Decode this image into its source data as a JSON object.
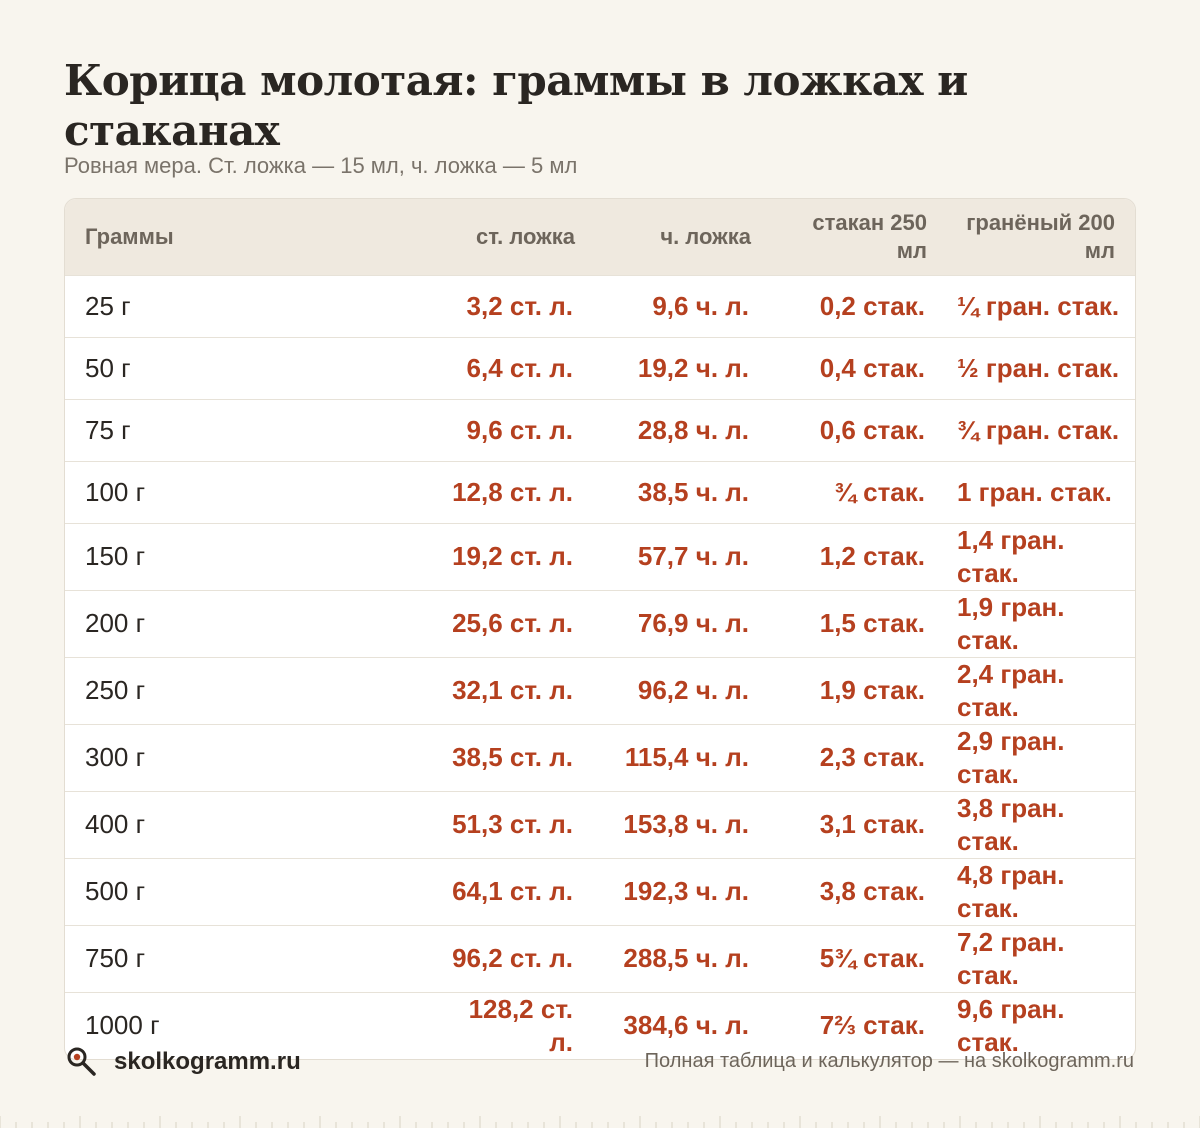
{
  "header": {
    "title": "Корица молотая: граммы в ложках и стаканах",
    "subtitle": "Ровная мера. Ст. ложка — 15 мл, ч. ложка — 5 мл"
  },
  "table": {
    "columns": [
      "Граммы",
      "ст. ложка",
      "ч. ложка",
      "стакан 250 мл",
      "гранёный 200 мл"
    ],
    "rows": [
      [
        "25 г",
        "3,2 ст. л.",
        "9,6 ч. л.",
        "0,2 стак.",
        "¼ гран. стак."
      ],
      [
        "50 г",
        "6,4 ст. л.",
        "19,2 ч. л.",
        "0,4 стак.",
        "½ гран. стак."
      ],
      [
        "75 г",
        "9,6 ст. л.",
        "28,8 ч. л.",
        "0,6 стак.",
        "¾ гран. стак."
      ],
      [
        "100 г",
        "12,8 ст. л.",
        "38,5 ч. л.",
        "¾ стак.",
        "1 гран. стак."
      ],
      [
        "150 г",
        "19,2 ст. л.",
        "57,7 ч. л.",
        "1,2 стак.",
        "1,4 гран. стак."
      ],
      [
        "200 г",
        "25,6 ст. л.",
        "76,9 ч. л.",
        "1,5 стак.",
        "1,9 гран. стак."
      ],
      [
        "250 г",
        "32,1 ст. л.",
        "96,2 ч. л.",
        "1,9 стак.",
        "2,4 гран. стак."
      ],
      [
        "300 г",
        "38,5 ст. л.",
        "115,4 ч. л.",
        "2,3 стак.",
        "2,9 гран. стак."
      ],
      [
        "400 г",
        "51,3 ст. л.",
        "153,8 ч. л.",
        "3,1 стак.",
        "3,8 гран. стак."
      ],
      [
        "500 г",
        "64,1 ст. л.",
        "192,3 ч. л.",
        "3,8 стак.",
        "4,8 гран. стак."
      ],
      [
        "750 г",
        "96,2 ст. л.",
        "288,5 ч. л.",
        "5¾ стак.",
        "7,2 гран. стак."
      ],
      [
        "1000 г",
        "128,2 ст. л.",
        "384,6 ч. л.",
        "7⅔ стак.",
        "9,6 гран. стак."
      ]
    ]
  },
  "footer": {
    "brand": "skolkogramm.ru",
    "logo_icon": "magnifier-icon",
    "note": "Полная таблица и калькулятор — на skolkogramm.ru"
  },
  "colors": {
    "background": "#f8f5ee",
    "accent": "#b5401f",
    "header_row": "#efe9df",
    "text": "#2a2622",
    "muted": "#7a736a"
  }
}
